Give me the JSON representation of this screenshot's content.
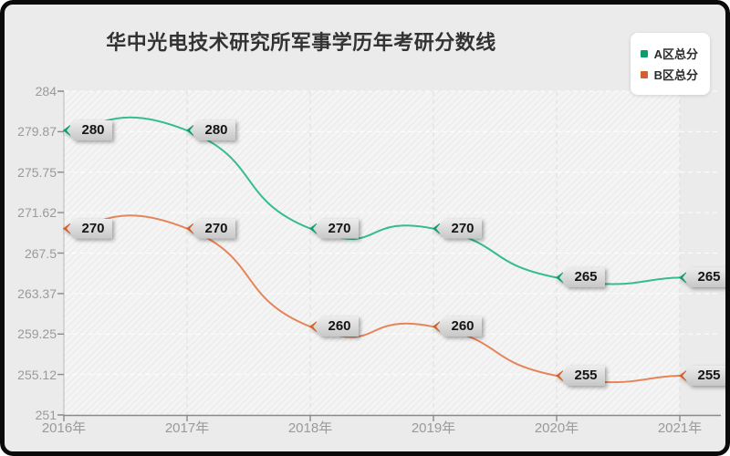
{
  "title": "华中光电技术研究所军事学历年考研分数线",
  "legend": {
    "items": [
      {
        "label": "A区总分",
        "color": "#0d9d6c"
      },
      {
        "label": "B区总分",
        "color": "#d2612c"
      }
    ]
  },
  "colors": {
    "background": "#ebebeb",
    "frame": "#0a0a0a",
    "axis": "#8a8a8a",
    "tick_label": "#9a9a9a",
    "grid_horizontal": "#ffffff",
    "grid_vertical": "#dedede",
    "series_a_line": "#35bd8c",
    "series_b_line": "#e58559",
    "label_tag_bg": "#d8d8d8",
    "label_tag_text": "#151515"
  },
  "chart_data": {
    "type": "line",
    "smooth": true,
    "grid": true,
    "legend_position": "top-right",
    "x": [
      "2016年",
      "2017年",
      "2018年",
      "2019年",
      "2020年",
      "2021年"
    ],
    "series": [
      {
        "name": "A区总分",
        "color": "#35bd8c",
        "marker_color": "#0d9d6c",
        "values": [
          280,
          280,
          270,
          270,
          265,
          265
        ]
      },
      {
        "name": "B区总分",
        "color": "#e58559",
        "marker_color": "#d2612c",
        "values": [
          270,
          270,
          260,
          260,
          255,
          255
        ]
      }
    ],
    "data_labels": true,
    "title": "华中光电技术研究所军事学历年考研分数线",
    "xlabel": "",
    "ylabel": "",
    "ylim": [
      251,
      284
    ],
    "y_ticks": [
      "284",
      "279.87",
      "275.75",
      "271.62",
      "267.5",
      "263.37",
      "259.25",
      "255.12",
      "251"
    ]
  }
}
